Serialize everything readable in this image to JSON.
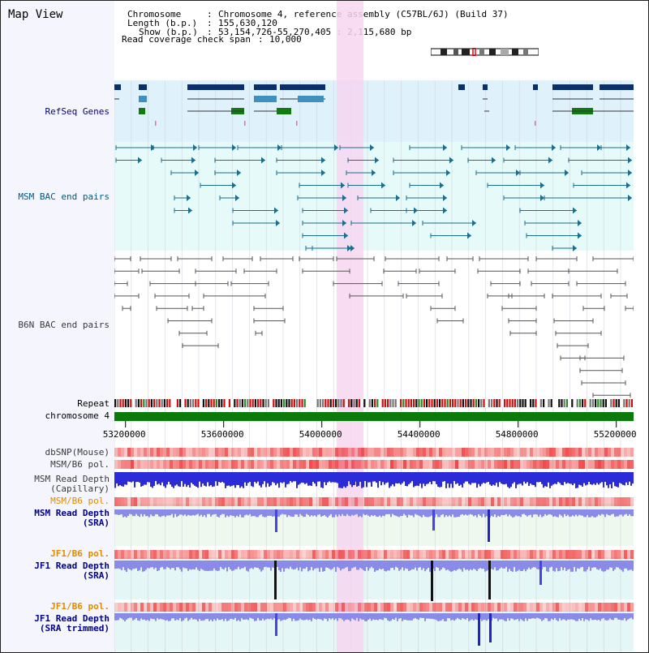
{
  "app": {
    "title": "Map View"
  },
  "header": {
    "chromosome_key": "Chromosome",
    "chromosome_val": "Chromosome 4, reference assembly (C57BL/6J) (Build 37)",
    "length_key": "Length (b.p.)",
    "length_val": "155,630,120",
    "show_key": "Show (b.p.)",
    "show_val": "53,154,726-55,270,405 : 2,115,680 bp",
    "coverage_key": "Read coverage check span",
    "coverage_val": "10,000"
  },
  "tracks": {
    "refseq": "RefSeq Genes",
    "msm_bac": "MSM BAC end pairs",
    "b6n_bac": "B6N BAC end pairs",
    "repeat": "Repeat",
    "chromosome": "chromosome 4",
    "dbsnp": "dbSNP(Mouse)",
    "msm_b6_pol_1": "MSM/B6 pol.",
    "msm_read_cap_1": "MSM Read Depth",
    "msm_read_cap_2": "(Capillary)",
    "msm_b6_pol_2": "MSM/B6 pol.",
    "msm_read_sra_1": "MSM Read Depth",
    "msm_read_sra_2": "(SRA)",
    "jf1_b6_pol_1": "JF1/B6 pol.",
    "jf1_read_sra_1": "JF1 Read Depth",
    "jf1_read_sra_2": "(SRA)",
    "jf1_b6_pol_2": "JF1/B6 pol.",
    "jf1_read_trim_1": "JF1 Read Depth",
    "jf1_read_trim_2": "(SRA trimmed)"
  },
  "axis": {
    "ticks": [
      "53200000",
      "53600000",
      "54000000",
      "54400000",
      "54800000",
      "55200000"
    ],
    "tick_values": [
      53200000,
      53600000,
      54000000,
      54400000,
      54800000,
      55200000
    ],
    "range": [
      53154726,
      55270405
    ]
  },
  "highlight": {
    "start": 54060000,
    "end": 54170000
  },
  "colors": {
    "refseq_bg": "#dff1fb",
    "msm_bac_bg": "#e6fafa",
    "pink_band": "#f6d6f0",
    "gene_dark": "#0b2f6a",
    "gene_mid": "#3f8fbf",
    "gene_green": "#117a11",
    "msm_line": "#1c6e8c",
    "b6n_line": "#555555",
    "chrom_green": "#0a7a0a",
    "depth_blue": "#2b2bd8",
    "depth_light": "#8a8ae8",
    "snp_red": "#ee3333",
    "label_navy": "#000088",
    "label_teal": "#005a7a",
    "label_gray": "#3a3a3a",
    "label_orange": "#e08a00"
  }
}
